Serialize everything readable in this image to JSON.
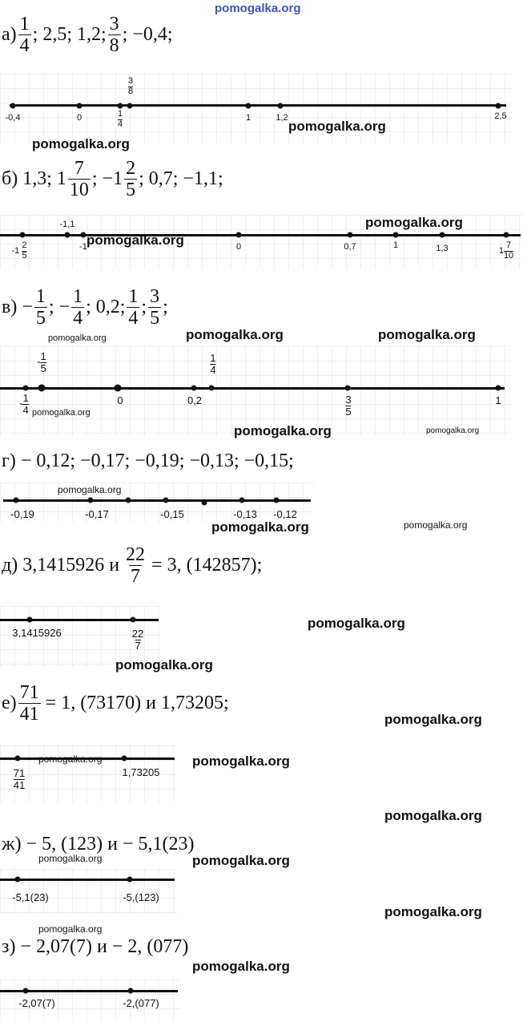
{
  "header": {
    "watermark": "pomogalka.org"
  },
  "watermarks": {
    "main": "pomogalka.org"
  },
  "tasks": {
    "a": {
      "letter": "а)",
      "f1": {
        "n": "1",
        "d": "4"
      },
      "t1": "; 2,5; 1,2;",
      "f2": {
        "n": "3",
        "d": "8"
      },
      "t2": ";  −0,4;",
      "labels": {
        "m04": "-0,4",
        "zero": "0",
        "q_n": "1",
        "q_d": "4",
        "e_n": "3",
        "e_d": "8",
        "one": "1",
        "p12": "1,2",
        "p25": "2,5"
      }
    },
    "b": {
      "letter": "б) 1,3; 1",
      "f1": {
        "n": "7",
        "d": "10"
      },
      "t1": "; −1",
      "f2": {
        "n": "2",
        "d": "5"
      },
      "t2": "; 0,7;  −1,1;",
      "labels": {
        "m1_int": "-1",
        "m1_n": "2",
        "m1_d": "5",
        "m11": "-1,1",
        "m1": "-1",
        "zero": "0",
        "p07": "0,7",
        "one": "1",
        "p13": "1,3",
        "p1_int": "1",
        "p1_n": "7",
        "p1_d": "10"
      }
    },
    "v": {
      "letter": "в) −",
      "f1": {
        "n": "1",
        "d": "5"
      },
      "t1": ";  −",
      "f2": {
        "n": "1",
        "d": "4"
      },
      "t2": "; 0,2;",
      "f3": {
        "n": "1",
        "d": "4"
      },
      "t3": ";",
      "f4": {
        "n": "3",
        "d": "5"
      },
      "t4": ";",
      "labels": {
        "minus": "-",
        "a_n": "1",
        "a_d": "5",
        "b_n": "1",
        "b_d": "4",
        "zero": "0",
        "p02": "0,2",
        "c_n": "1",
        "c_d": "4",
        "d_n": "3",
        "d_d": "5",
        "one": "1"
      }
    },
    "g": {
      "text": "г) − 0,12;  −0,17;  −0,19;  −0,13;  −0,15;",
      "labels": {
        "m019": "-0,19",
        "m017": "-0,17",
        "m015": "-0,15",
        "m013": "-0,13",
        "m012": "-0,12"
      }
    },
    "d": {
      "t1": "д) 3,1415926 и",
      "f1": {
        "n": "22",
        "d": "7"
      },
      "t2": "= 3, (142857);",
      "labels": {
        "pi": "3,1415926",
        "f_n": "22",
        "f_d": "7"
      }
    },
    "e": {
      "t0": "е)",
      "f1": {
        "n": "71",
        "d": "41"
      },
      "t1": "= 1, (73170) и 1,73205;",
      "labels": {
        "f_n": "71",
        "f_d": "41",
        "v": "1,73205"
      }
    },
    "zh": {
      "text": "ж) − 5, (123) и − 5,1(23)",
      "labels": {
        "a": "-5,1(23)",
        "b": "-5,(123)"
      }
    },
    "z": {
      "text": "з) − 2,07(7) и − 2, (077)",
      "labels": {
        "a": "-2,07(7)",
        "b": "-2,(077)"
      }
    }
  }
}
